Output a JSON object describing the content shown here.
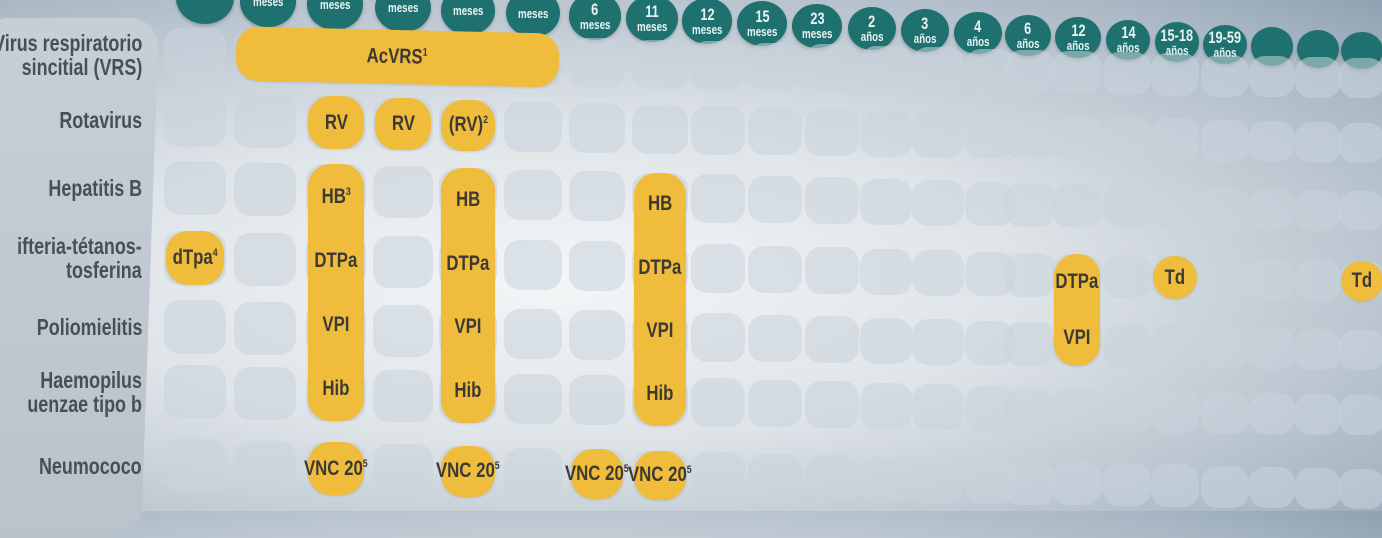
{
  "colors": {
    "header": "#1f716f",
    "vaccine": "#f0bc3c",
    "cell": "#c8d4dc"
  },
  "columns": [
    {
      "num": "",
      "unit": ""
    },
    {
      "num": "",
      "unit": "meses"
    },
    {
      "num": "",
      "unit": "meses"
    },
    {
      "num": "",
      "unit": "meses"
    },
    {
      "num": "",
      "unit": "meses"
    },
    {
      "num": "",
      "unit": "meses"
    },
    {
      "num": "6",
      "unit": "meses"
    },
    {
      "num": "11",
      "unit": "meses"
    },
    {
      "num": "12",
      "unit": "meses"
    },
    {
      "num": "15",
      "unit": "meses"
    },
    {
      "num": "23",
      "unit": "meses"
    },
    {
      "num": "2",
      "unit": "años"
    },
    {
      "num": "3",
      "unit": "años"
    },
    {
      "num": "4",
      "unit": "años"
    },
    {
      "num": "6",
      "unit": "años"
    },
    {
      "num": "12",
      "unit": "años"
    },
    {
      "num": "14",
      "unit": "años"
    },
    {
      "num": "15-18",
      "unit": "años"
    },
    {
      "num": "19-59",
      "unit": "años"
    },
    {
      "num": "",
      "unit": ""
    },
    {
      "num": "",
      "unit": ""
    },
    {
      "num": "",
      "unit": ""
    }
  ],
  "rows": [
    "Virus respiratorio\nsincitial (VRS)",
    "Rotavirus",
    "Hepatitis B",
    "ifteria-tétanos-\ntosferina",
    "Poliomielitis",
    "Haemopilus\nuenzae tipo b",
    "Neumococo"
  ],
  "vaccines": [
    {
      "r0": 0,
      "r1": 0,
      "c0": 1,
      "c1": 5,
      "lines": [
        {
          "t": "AcVRS",
          "s": "1"
        }
      ]
    },
    {
      "r0": 1,
      "r1": 1,
      "c0": 2,
      "c1": 2,
      "lines": [
        {
          "t": "RV",
          "s": ""
        }
      ]
    },
    {
      "r0": 1,
      "r1": 1,
      "c0": 3,
      "c1": 3,
      "lines": [
        {
          "t": "RV",
          "s": ""
        }
      ]
    },
    {
      "r0": 1,
      "r1": 1,
      "c0": 4,
      "c1": 4,
      "lines": [
        {
          "t": "(RV)",
          "s": "2"
        }
      ]
    },
    {
      "r0": 2,
      "r1": 5,
      "c0": 2,
      "c1": 2,
      "lines": [
        {
          "t": "HB",
          "s": "3"
        },
        {
          "t": "DTPa",
          "s": ""
        },
        {
          "t": "VPI",
          "s": ""
        },
        {
          "t": "Hib",
          "s": ""
        }
      ]
    },
    {
      "r0": 2,
      "r1": 5,
      "c0": 4,
      "c1": 4,
      "lines": [
        {
          "t": "HB",
          "s": ""
        },
        {
          "t": "DTPa",
          "s": ""
        },
        {
          "t": "VPI",
          "s": ""
        },
        {
          "t": "Hib",
          "s": ""
        }
      ]
    },
    {
      "r0": 2,
      "r1": 5,
      "c0": 7,
      "c1": 7,
      "lines": [
        {
          "t": "HB",
          "s": ""
        },
        {
          "t": "DTPa",
          "s": ""
        },
        {
          "t": "VPI",
          "s": ""
        },
        {
          "t": "Hib",
          "s": ""
        }
      ]
    },
    {
      "r0": 3,
      "r1": 3,
      "c0": 0,
      "c1": 0,
      "lines": [
        {
          "t": "dTpa",
          "s": "4"
        }
      ]
    },
    {
      "r0": 3,
      "r1": 4,
      "c0": 15,
      "c1": 15,
      "lines": [
        {
          "t": "DTPa",
          "s": ""
        },
        {
          "t": "VPI",
          "s": ""
        }
      ]
    },
    {
      "r0": 3,
      "r1": 3,
      "c0": 17,
      "c1": 17,
      "lines": [
        {
          "t": "Td",
          "s": ""
        }
      ]
    },
    {
      "r0": 3,
      "r1": 3,
      "c0": 21,
      "c1": 21,
      "lines": [
        {
          "t": "Td",
          "s": ""
        }
      ]
    },
    {
      "r0": 6,
      "r1": 6,
      "c0": 2,
      "c1": 2,
      "lines": [
        {
          "t": "VNC 20",
          "s": "5"
        }
      ]
    },
    {
      "r0": 6,
      "r1": 6,
      "c0": 4,
      "c1": 4,
      "lines": [
        {
          "t": "VNC 20",
          "s": "5"
        }
      ]
    },
    {
      "r0": 6,
      "r1": 6,
      "c0": 6,
      "c1": 6,
      "lines": [
        {
          "t": "VNC 20",
          "s": "5"
        }
      ]
    },
    {
      "r0": 6,
      "r1": 6,
      "c0": 7,
      "c1": 7,
      "lines": [
        {
          "t": "VNC 20",
          "s": "5"
        }
      ]
    }
  ]
}
